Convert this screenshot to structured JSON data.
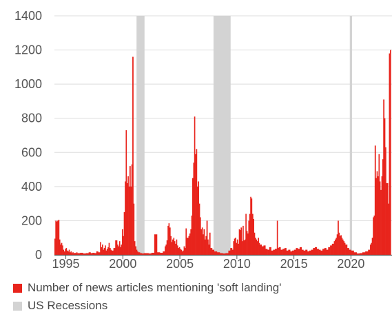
{
  "chart_data": {
    "type": "bar",
    "x_range": [
      1994,
      2023.6
    ],
    "xticks": [
      1995,
      2000,
      2005,
      2010,
      2015,
      2020
    ],
    "ylim": [
      0,
      1400
    ],
    "yticks": [
      0,
      200,
      400,
      600,
      800,
      1000,
      1200,
      1400
    ],
    "grid": true,
    "legend_position": "bottom",
    "series": [
      {
        "name": "Number of news articles mentioning 'soft landing'",
        "color": "#e8241c",
        "points": [
          [
            1994.0,
            95
          ],
          [
            1994.08,
            200
          ],
          [
            1994.17,
            195
          ],
          [
            1994.25,
            200
          ],
          [
            1994.33,
            205
          ],
          [
            1994.42,
            90
          ],
          [
            1994.5,
            60
          ],
          [
            1994.58,
            70
          ],
          [
            1994.67,
            55
          ],
          [
            1994.75,
            30
          ],
          [
            1994.83,
            20
          ],
          [
            1994.92,
            35
          ],
          [
            1995.0,
            40
          ],
          [
            1995.08,
            25
          ],
          [
            1995.17,
            20
          ],
          [
            1995.25,
            30
          ],
          [
            1995.33,
            15
          ],
          [
            1995.42,
            20
          ],
          [
            1995.5,
            10
          ],
          [
            1995.58,
            15
          ],
          [
            1995.67,
            8
          ],
          [
            1995.75,
            12
          ],
          [
            1995.83,
            10
          ],
          [
            1995.92,
            15
          ],
          [
            1996.0,
            10
          ],
          [
            1996.25,
            12
          ],
          [
            1996.5,
            8
          ],
          [
            1996.75,
            10
          ],
          [
            1997.0,
            15
          ],
          [
            1997.17,
            10
          ],
          [
            1997.33,
            12
          ],
          [
            1997.5,
            10
          ],
          [
            1997.67,
            20
          ],
          [
            1997.83,
            15
          ],
          [
            1998.0,
            75
          ],
          [
            1998.08,
            45
          ],
          [
            1998.17,
            60
          ],
          [
            1998.25,
            30
          ],
          [
            1998.33,
            40
          ],
          [
            1998.42,
            55
          ],
          [
            1998.5,
            25
          ],
          [
            1998.58,
            35
          ],
          [
            1998.67,
            45
          ],
          [
            1998.75,
            70
          ],
          [
            1998.83,
            40
          ],
          [
            1998.92,
            30
          ],
          [
            1999.0,
            25
          ],
          [
            1999.17,
            40
          ],
          [
            1999.33,
            85
          ],
          [
            1999.5,
            60
          ],
          [
            1999.58,
            50
          ],
          [
            1999.67,
            80
          ],
          [
            1999.75,
            45
          ],
          [
            1999.83,
            60
          ],
          [
            1999.92,
            150
          ],
          [
            2000.0,
            110
          ],
          [
            2000.08,
            250
          ],
          [
            2000.17,
            430
          ],
          [
            2000.25,
            730
          ],
          [
            2000.33,
            420
          ],
          [
            2000.42,
            460
          ],
          [
            2000.5,
            400
          ],
          [
            2000.58,
            520
          ],
          [
            2000.67,
            400
          ],
          [
            2000.75,
            530
          ],
          [
            2000.83,
            1160
          ],
          [
            2000.92,
            300
          ],
          [
            2001.0,
            80
          ],
          [
            2001.08,
            50
          ],
          [
            2001.17,
            30
          ],
          [
            2001.25,
            20
          ],
          [
            2001.33,
            15
          ],
          [
            2001.5,
            10
          ],
          [
            2001.67,
            8
          ],
          [
            2001.83,
            10
          ],
          [
            2002.0,
            10
          ],
          [
            2002.25,
            8
          ],
          [
            2002.5,
            12
          ],
          [
            2002.75,
            120
          ],
          [
            2003.0,
            15
          ],
          [
            2003.25,
            12
          ],
          [
            2003.5,
            20
          ],
          [
            2003.67,
            50
          ],
          [
            2003.75,
            60
          ],
          [
            2003.83,
            85
          ],
          [
            2003.92,
            170
          ],
          [
            2004.0,
            185
          ],
          [
            2004.08,
            160
          ],
          [
            2004.17,
            110
          ],
          [
            2004.25,
            75
          ],
          [
            2004.33,
            90
          ],
          [
            2004.42,
            100
          ],
          [
            2004.5,
            80
          ],
          [
            2004.58,
            65
          ],
          [
            2004.67,
            90
          ],
          [
            2004.75,
            55
          ],
          [
            2004.83,
            40
          ],
          [
            2004.92,
            45
          ],
          [
            2005.0,
            35
          ],
          [
            2005.08,
            30
          ],
          [
            2005.17,
            20
          ],
          [
            2005.25,
            25
          ],
          [
            2005.33,
            50
          ],
          [
            2005.42,
            40
          ],
          [
            2005.5,
            155
          ],
          [
            2005.58,
            100
          ],
          [
            2005.67,
            100
          ],
          [
            2005.75,
            110
          ],
          [
            2005.83,
            125
          ],
          [
            2005.92,
            150
          ],
          [
            2006.0,
            230
          ],
          [
            2006.08,
            450
          ],
          [
            2006.17,
            540
          ],
          [
            2006.25,
            810
          ],
          [
            2006.33,
            590
          ],
          [
            2006.42,
            620
          ],
          [
            2006.5,
            400
          ],
          [
            2006.58,
            430
          ],
          [
            2006.67,
            300
          ],
          [
            2006.75,
            220
          ],
          [
            2006.83,
            150
          ],
          [
            2006.92,
            160
          ],
          [
            2007.0,
            120
          ],
          [
            2007.08,
            150
          ],
          [
            2007.17,
            90
          ],
          [
            2007.25,
            110
          ],
          [
            2007.33,
            200
          ],
          [
            2007.42,
            90
          ],
          [
            2007.5,
            60
          ],
          [
            2007.58,
            130
          ],
          [
            2007.67,
            40
          ],
          [
            2007.83,
            30
          ],
          [
            2008.0,
            20
          ],
          [
            2008.25,
            15
          ],
          [
            2008.5,
            10
          ],
          [
            2008.75,
            8
          ],
          [
            2009.0,
            10
          ],
          [
            2009.25,
            25
          ],
          [
            2009.42,
            40
          ],
          [
            2009.58,
            30
          ],
          [
            2009.67,
            80
          ],
          [
            2009.75,
            95
          ],
          [
            2009.83,
            100
          ],
          [
            2009.92,
            70
          ],
          [
            2010.0,
            90
          ],
          [
            2010.08,
            65
          ],
          [
            2010.17,
            150
          ],
          [
            2010.25,
            145
          ],
          [
            2010.33,
            160
          ],
          [
            2010.42,
            80
          ],
          [
            2010.5,
            170
          ],
          [
            2010.58,
            85
          ],
          [
            2010.67,
            90
          ],
          [
            2010.75,
            240
          ],
          [
            2010.83,
            140
          ],
          [
            2010.92,
            125
          ],
          [
            2011.0,
            200
          ],
          [
            2011.08,
            240
          ],
          [
            2011.17,
            340
          ],
          [
            2011.25,
            330
          ],
          [
            2011.33,
            240
          ],
          [
            2011.42,
            210
          ],
          [
            2011.5,
            130
          ],
          [
            2011.58,
            100
          ],
          [
            2011.67,
            90
          ],
          [
            2011.75,
            80
          ],
          [
            2011.83,
            100
          ],
          [
            2011.92,
            70
          ],
          [
            2012.0,
            60
          ],
          [
            2012.17,
            50
          ],
          [
            2012.33,
            55
          ],
          [
            2012.5,
            35
          ],
          [
            2012.67,
            30
          ],
          [
            2012.83,
            45
          ],
          [
            2013.0,
            25
          ],
          [
            2013.17,
            30
          ],
          [
            2013.33,
            35
          ],
          [
            2013.5,
            200
          ],
          [
            2013.58,
            40
          ],
          [
            2013.67,
            45
          ],
          [
            2013.83,
            30
          ],
          [
            2014.0,
            35
          ],
          [
            2014.17,
            40
          ],
          [
            2014.33,
            25
          ],
          [
            2014.5,
            30
          ],
          [
            2014.67,
            20
          ],
          [
            2014.83,
            25
          ],
          [
            2015.0,
            30
          ],
          [
            2015.17,
            40
          ],
          [
            2015.33,
            35
          ],
          [
            2015.5,
            45
          ],
          [
            2015.67,
            30
          ],
          [
            2015.83,
            25
          ],
          [
            2016.0,
            30
          ],
          [
            2016.17,
            20
          ],
          [
            2016.33,
            25
          ],
          [
            2016.5,
            30
          ],
          [
            2016.67,
            40
          ],
          [
            2016.83,
            45
          ],
          [
            2017.0,
            35
          ],
          [
            2017.17,
            30
          ],
          [
            2017.33,
            25
          ],
          [
            2017.5,
            35
          ],
          [
            2017.67,
            40
          ],
          [
            2017.83,
            30
          ],
          [
            2018.0,
            45
          ],
          [
            2018.17,
            55
          ],
          [
            2018.33,
            65
          ],
          [
            2018.5,
            80
          ],
          [
            2018.58,
            90
          ],
          [
            2018.67,
            100
          ],
          [
            2018.75,
            120
          ],
          [
            2018.83,
            200
          ],
          [
            2018.92,
            130
          ],
          [
            2019.0,
            110
          ],
          [
            2019.08,
            115
          ],
          [
            2019.17,
            100
          ],
          [
            2019.25,
            90
          ],
          [
            2019.33,
            80
          ],
          [
            2019.42,
            70
          ],
          [
            2019.5,
            60
          ],
          [
            2019.67,
            40
          ],
          [
            2019.83,
            30
          ],
          [
            2020.0,
            25
          ],
          [
            2020.25,
            15
          ],
          [
            2020.5,
            8
          ],
          [
            2020.75,
            10
          ],
          [
            2021.0,
            15
          ],
          [
            2021.25,
            20
          ],
          [
            2021.5,
            30
          ],
          [
            2021.67,
            60
          ],
          [
            2021.75,
            70
          ],
          [
            2021.83,
            100
          ],
          [
            2021.92,
            220
          ],
          [
            2022.0,
            230
          ],
          [
            2022.08,
            640
          ],
          [
            2022.17,
            450
          ],
          [
            2022.25,
            490
          ],
          [
            2022.33,
            460
          ],
          [
            2022.42,
            590
          ],
          [
            2022.5,
            430
          ],
          [
            2022.58,
            380
          ],
          [
            2022.67,
            460
          ],
          [
            2022.75,
            560
          ],
          [
            2022.83,
            910
          ],
          [
            2022.92,
            800
          ],
          [
            2023.0,
            630
          ],
          [
            2023.08,
            420
          ],
          [
            2023.17,
            420
          ],
          [
            2023.25,
            300
          ],
          [
            2023.33,
            1180
          ],
          [
            2023.42,
            1200
          ]
        ]
      },
      {
        "name": "US Recessions",
        "color": "#d3d3d3",
        "spans": [
          [
            2001.2,
            2001.9
          ],
          [
            2007.95,
            2009.45
          ],
          [
            2019.9,
            2020.1
          ]
        ]
      }
    ]
  }
}
